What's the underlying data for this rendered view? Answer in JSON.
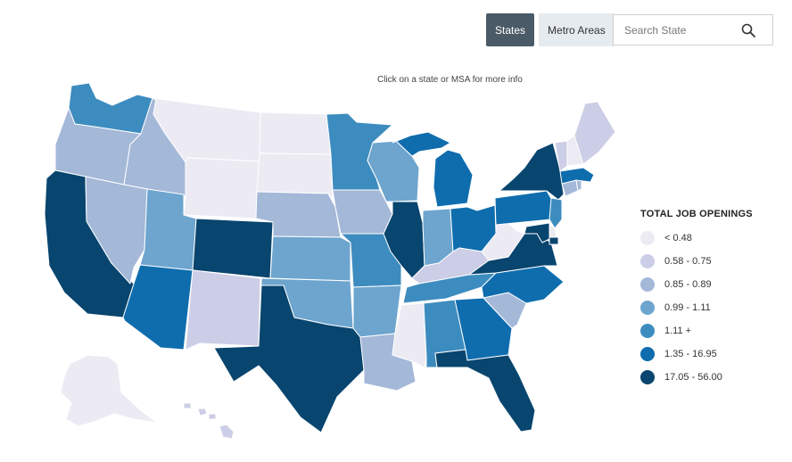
{
  "toolbar": {
    "states_label": "States",
    "metro_label": "Metro Areas",
    "search_placeholder": "Search State"
  },
  "hint": "Click on a state or MSA for more info",
  "legend": {
    "title": "TOTAL JOB OPENINGS",
    "items": [
      {
        "label": "< 0.48",
        "color": "#ecebf4"
      },
      {
        "label": "0.58 - 0.75",
        "color": "#cccde6"
      },
      {
        "label": "0.85 - 0.89",
        "color": "#a4b8d8"
      },
      {
        "label": "0.99 - 1.11",
        "color": "#6da5ce"
      },
      {
        "label": "1.11 +",
        "color": "#3d8cbf"
      },
      {
        "label": "1.35 - 16.95",
        "color": "#0f6dae"
      },
      {
        "label": "17.05 - 56.00",
        "color": "#08456f"
      }
    ]
  },
  "chart_data": {
    "type": "choropleth",
    "title": "",
    "legend_title": "TOTAL JOB OPENINGS",
    "classes": [
      "< 0.48",
      "0.58 - 0.75",
      "0.85 - 0.89",
      "0.99 - 1.11",
      "1.11 +",
      "1.35 - 16.95",
      "17.05 - 56.00"
    ],
    "states": {
      "WA": 4,
      "OR": 2,
      "CA": 6,
      "ID": 2,
      "NV": 2,
      "MT": 0,
      "WY": 0,
      "UT": 3,
      "AZ": 5,
      "CO": 6,
      "NM": 1,
      "ND": 0,
      "SD": 0,
      "NE": 2,
      "KS": 3,
      "OK": 3,
      "TX": 6,
      "MN": 4,
      "IA": 2,
      "MO": 4,
      "AR": 3,
      "LA": 2,
      "WI": 3,
      "IL": 6,
      "MI": 5,
      "IN": 3,
      "OH": 5,
      "KY": 1,
      "TN": 4,
      "MS": 0,
      "AL": 4,
      "GA": 5,
      "FL": 6,
      "SC": 2,
      "NC": 5,
      "VA": 6,
      "WV": 0,
      "PA": 5,
      "NY": 6,
      "NJ": 4,
      "DE": 0,
      "MD": 6,
      "CT": 2,
      "RI": 2,
      "MA": 5,
      "VT": 1,
      "NH": 0,
      "ME": 1,
      "AK": 0,
      "HI": 1,
      "DC": 6
    }
  }
}
